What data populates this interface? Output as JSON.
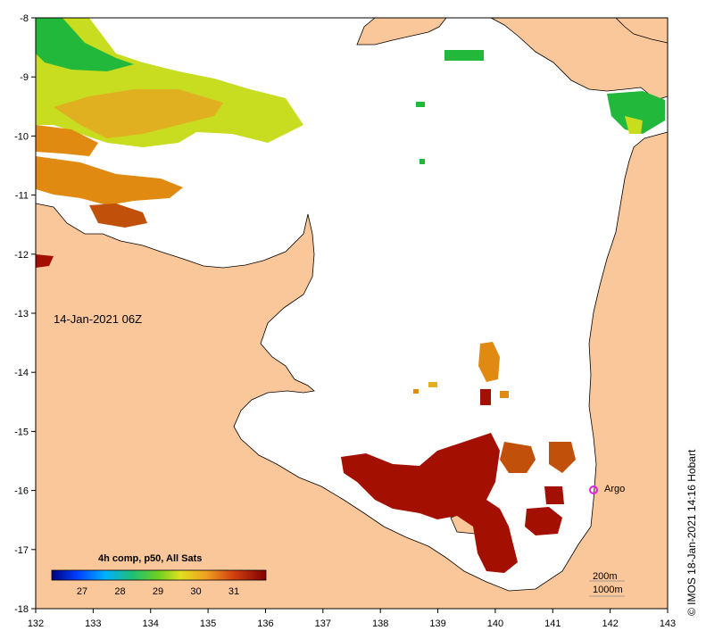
{
  "map": {
    "timestamp": "14-Jan-2021 06Z",
    "legend_title": "4h comp, p50, All Sats",
    "legend_ticks": [
      "27",
      "28",
      "29",
      "30",
      "31"
    ],
    "argo_label": "Argo",
    "depth_labels": [
      "200m",
      "1000m"
    ],
    "credit": "© IMOS 18-Jan-2021 14:16 Hobart",
    "x_ticks": [
      "132",
      "133",
      "134",
      "135",
      "136",
      "137",
      "138",
      "139",
      "140",
      "141",
      "142",
      "143"
    ],
    "y_ticks": [
      "-8",
      "-9",
      "-10",
      "-11",
      "-12",
      "-13",
      "-14",
      "-15",
      "-16",
      "-17",
      "-18"
    ],
    "colors": {
      "land": "#f9c79a",
      "ocean": "#ffffff",
      "hot": "#a30f00",
      "warm": "#e08a12",
      "mild": "#c8dc20",
      "cool": "#22b83c",
      "argo": "#e020e0"
    }
  }
}
